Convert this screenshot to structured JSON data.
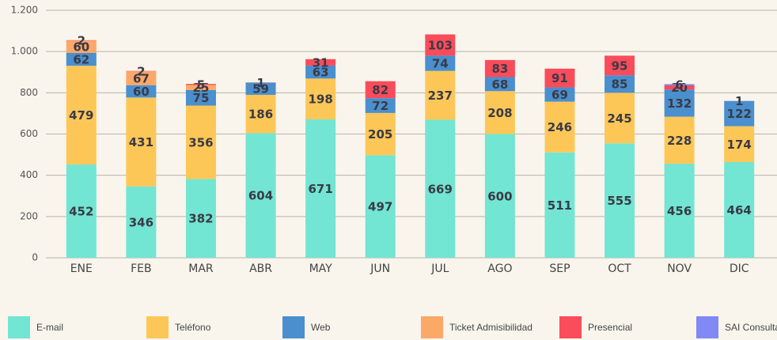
{
  "chart_data": {
    "type": "stacked_bar",
    "categories": [
      "ENE",
      "FEB",
      "MAR",
      "ABR",
      "MAY",
      "JUN",
      "JUL",
      "AGO",
      "SEP",
      "OCT",
      "NOV",
      "DIC"
    ],
    "series": [
      {
        "name": "E-mail",
        "color": "#72e5d3",
        "values": [
          452,
          346,
          382,
          604,
          671,
          497,
          669,
          600,
          511,
          555,
          456,
          464
        ]
      },
      {
        "name": "Teléfono",
        "color": "#fdc758",
        "values": [
          479,
          431,
          356,
          186,
          198,
          205,
          237,
          208,
          246,
          245,
          228,
          174
        ]
      },
      {
        "name": "Web",
        "color": "#4a8fce",
        "values": [
          62,
          60,
          75,
          59,
          63,
          72,
          74,
          68,
          69,
          85,
          132,
          122
        ]
      },
      {
        "name": "Ticket Admisibilidad",
        "color": "#fca868",
        "values": [
          60,
          67,
          25,
          null,
          null,
          null,
          null,
          null,
          null,
          null,
          null,
          null
        ]
      },
      {
        "name": "Presencial",
        "color": "#fa4c5b",
        "values": [
          2,
          2,
          5,
          1,
          31,
          82,
          103,
          83,
          91,
          95,
          20,
          null
        ]
      },
      {
        "name": "SAI Consulta",
        "color": "#8189f5",
        "values": [
          null,
          null,
          null,
          null,
          null,
          null,
          null,
          null,
          null,
          null,
          6,
          1
        ]
      }
    ],
    "ylim": [
      0,
      1200
    ],
    "yticks": [
      0,
      200,
      400,
      600,
      800,
      {
        "value": 1000,
        "label": "1.000"
      },
      {
        "value": 1200,
        "label": "1.200"
      }
    ],
    "grid": true,
    "legend": "bottom"
  }
}
